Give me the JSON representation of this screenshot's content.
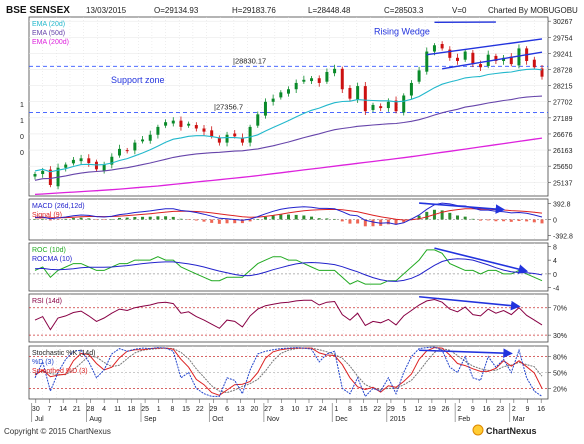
{
  "header": {
    "title": "BSE SENSEX",
    "date": "13/03/2015",
    "open": "O=29134.93",
    "high": "H=29183.76",
    "low": "L=28448.48",
    "close": "C=28503.3",
    "volume": "V=0",
    "charted_by": "Charted By MOBUGOBU"
  },
  "footer": {
    "copyright": "Copyright © 2015 ChartNexus",
    "brand": "ChartNexus"
  },
  "colors": {
    "price_up": "#0a8a2a",
    "price_down": "#cc1111",
    "ema20": "#22b8cc",
    "ema50": "#6644aa",
    "ema200": "#dd22dd",
    "macd": "#2222cc",
    "signal": "#dd2222",
    "hist_up": "#2e8b2e",
    "hist_down": "#ee6655",
    "roc": "#22aa22",
    "rocma": "#2222cc",
    "rsi": "#880044",
    "stoch_k": "#2244cc",
    "stoch_d": "#dd2222",
    "annotation": "#2233dd",
    "zone_line": "#3355ff"
  },
  "chart_data": [
    {
      "type": "candlestick",
      "title": "BSE SENSEX",
      "legend": [
        "EMA (20d)",
        "EMA (50d)",
        "EMA (200d)"
      ],
      "legend_placement": "top-left",
      "annotations": [
        "Support zone",
        "Rising Wedge",
        "|28830.17",
        "|27356.7"
      ],
      "horizontal_levels": [
        28830.17,
        27356.7
      ],
      "ylim": [
        24700,
        30400
      ],
      "y_ticks": [
        30267,
        29754,
        29241,
        28728,
        28215,
        27702,
        27189,
        26676,
        26163,
        25650,
        25137
      ],
      "left_labels": [
        "1",
        "1",
        "0",
        "0"
      ],
      "x_tick_labels": [
        "30",
        "7",
        "14",
        "21",
        "28",
        "4",
        "11",
        "18",
        "25",
        "1",
        "8",
        "15",
        "22",
        "29",
        "6",
        "13",
        "20",
        "27",
        "3",
        "10",
        "17",
        "24",
        "1",
        "8",
        "15",
        "22",
        "29",
        "5",
        "12",
        "19",
        "26",
        "2",
        "9",
        "16",
        "23",
        "2",
        "9",
        "16"
      ],
      "month_labels": [
        "Jul",
        "Aug",
        "Sep",
        "Oct",
        "Nov",
        "Dec",
        "2015",
        "Feb",
        "Mar"
      ],
      "close": [
        25400,
        25500,
        25050,
        25600,
        25700,
        25850,
        25900,
        25750,
        25550,
        25700,
        25950,
        26200,
        26150,
        26400,
        26500,
        26650,
        26900,
        27050,
        27100,
        26900,
        27000,
        26850,
        26750,
        26600,
        26400,
        26650,
        26600,
        26400,
        26900,
        27300,
        27700,
        27800,
        28000,
        28100,
        28300,
        28400,
        28450,
        28300,
        28650,
        28750,
        28100,
        27800,
        28200,
        27400,
        27600,
        27500,
        27700,
        27400,
        27900,
        28300,
        28700,
        29300,
        29500,
        29400,
        29100,
        29000,
        29300,
        28900,
        28800,
        29200,
        29000,
        29100,
        28900,
        29400,
        29000,
        28800,
        28500
      ],
      "ema_20d": [
        25500,
        25550,
        25470,
        25520,
        25570,
        25640,
        25700,
        25710,
        25690,
        25700,
        25750,
        25830,
        25890,
        25980,
        26070,
        26170,
        26290,
        26410,
        26510,
        26550,
        26600,
        26620,
        26620,
        26590,
        26550,
        26560,
        26560,
        26540,
        26580,
        26650,
        26770,
        26880,
        26990,
        27100,
        27220,
        27330,
        27430,
        27500,
        27590,
        27670,
        27710,
        27720,
        27770,
        27750,
        27740,
        27730,
        27730,
        27700,
        27720,
        27780,
        27870,
        28010,
        28150,
        28260,
        28330,
        28390,
        28460,
        28490,
        28510,
        28570,
        28600,
        28630,
        28650,
        28700,
        28730,
        28740,
        28720
      ],
      "ema_50d": [
        25200,
        25250,
        25260,
        25300,
        25340,
        25390,
        25430,
        25460,
        25480,
        25500,
        25530,
        25570,
        25600,
        25650,
        25700,
        25750,
        25810,
        25870,
        25930,
        25970,
        26010,
        26040,
        26060,
        26080,
        26090,
        26110,
        26130,
        26140,
        26170,
        26200,
        26250,
        26300,
        26360,
        26420,
        26490,
        26560,
        26620,
        26680,
        26750,
        26810,
        26850,
        26880,
        26920,
        26940,
        26960,
        26980,
        27000,
        27010,
        27040,
        27080,
        27130,
        27200,
        27280,
        27350,
        27410,
        27460,
        27530,
        27570,
        27610,
        27660,
        27700,
        27740,
        27770,
        27820,
        27850,
        27870,
        27880
      ],
      "ema_200d": [
        24750,
        24765,
        24780,
        24795,
        24810,
        24825,
        24840,
        24855,
        24870,
        24885,
        24900,
        24920,
        24940,
        24960,
        24980,
        25000,
        25020,
        25045,
        25070,
        25095,
        25120,
        25145,
        25170,
        25195,
        25220,
        25245,
        25270,
        25295,
        25320,
        25350,
        25380,
        25410,
        25440,
        25470,
        25500,
        25530,
        25560,
        25590,
        25620,
        25650,
        25680,
        25710,
        25740,
        25770,
        25800,
        25830,
        25860,
        25890,
        25920,
        25950,
        25985,
        26020,
        26055,
        26090,
        26125,
        26160,
        26195,
        26230,
        26265,
        26300,
        26335,
        26370,
        26405,
        26440,
        26475,
        26510,
        26545
      ]
    },
    {
      "type": "line",
      "title": "MACD (26d,12d)",
      "legend": [
        "MACD (26d,12d)",
        "Signal (9)"
      ],
      "ylim": [
        -500,
        500
      ],
      "y_ticks": [
        392.8,
        0,
        -392.8
      ],
      "macd": [
        50,
        60,
        20,
        40,
        60,
        90,
        110,
        100,
        70,
        60,
        80,
        120,
        140,
        170,
        190,
        210,
        240,
        260,
        260,
        220,
        200,
        170,
        130,
        80,
        30,
        20,
        0,
        -20,
        10,
        70,
        140,
        200,
        250,
        280,
        300,
        310,
        300,
        270,
        270,
        260,
        190,
        110,
        90,
        -20,
        -60,
        -90,
        -80,
        -120,
        -80,
        10,
        110,
        250,
        360,
        400,
        380,
        340,
        330,
        280,
        230,
        230,
        200,
        190,
        160,
        170,
        150,
        110,
        60
      ],
      "signal": [
        40,
        45,
        42,
        42,
        46,
        55,
        66,
        73,
        72,
        70,
        72,
        82,
        94,
        109,
        125,
        142,
        162,
        181,
        197,
        202,
        201,
        195,
        182,
        162,
        136,
        113,
        90,
        68,
        56,
        59,
        75,
        100,
        130,
        160,
        188,
        212,
        230,
        238,
        244,
        247,
        236,
        211,
        187,
        146,
        105,
        66,
        37,
        6,
        -11,
        -7,
        17,
        64,
        123,
        178,
        218,
        242,
        260,
        264,
        257,
        252,
        242,
        232,
        217,
        207,
        196,
        179,
        155
      ]
    },
    {
      "type": "line",
      "title": "ROC (10d)",
      "legend": [
        "ROC (10d)",
        "ROCMA (10)"
      ],
      "ylim": [
        -5,
        9
      ],
      "y_ticks": [
        8,
        4,
        0,
        -4
      ],
      "roc": [
        1,
        2,
        -1,
        1,
        2,
        3,
        3,
        2,
        1,
        1,
        2,
        3,
        3,
        4,
        4,
        4,
        5,
        4,
        4,
        2,
        1,
        0,
        -1,
        -2,
        -2,
        -1,
        -1,
        -1,
        1,
        3,
        4,
        5,
        5,
        4,
        4,
        3,
        2,
        1,
        1,
        1,
        -1,
        -3,
        -2,
        -3,
        -3,
        -3,
        -2,
        -2,
        0,
        2,
        4,
        7,
        7,
        6,
        3,
        2,
        1,
        1,
        0,
        1,
        1,
        0,
        0,
        1,
        0,
        -1,
        -2
      ],
      "rocma": [
        1.5,
        1.6,
        1.3,
        1.2,
        1.3,
        1.5,
        1.8,
        1.9,
        1.9,
        1.9,
        2.0,
        2.2,
        2.4,
        2.7,
        3.0,
        3.2,
        3.4,
        3.5,
        3.5,
        3.2,
        2.9,
        2.5,
        2.0,
        1.4,
        0.8,
        0.3,
        -0.2,
        -0.5,
        -0.5,
        -0.1,
        0.5,
        1.2,
        1.8,
        2.4,
        2.9,
        3.2,
        3.3,
        3.2,
        3.0,
        2.7,
        2.1,
        1.3,
        0.6,
        -0.3,
        -1.1,
        -1.7,
        -2.1,
        -2.2,
        -1.9,
        -1.3,
        -0.3,
        1.1,
        2.5,
        3.6,
        4.2,
        4.4,
        4.3,
        4.0,
        3.3,
        2.6,
        1.8,
        1.1,
        0.6,
        0.4,
        0.3,
        0.1,
        -0.3
      ]
    },
    {
      "type": "line",
      "title": "RSI (14d)",
      "legend": [
        "RSI (14d)"
      ],
      "ylim": [
        20,
        90
      ],
      "y_ticks": [
        70,
        30
      ],
      "rsi": [
        52,
        57,
        38,
        55,
        58,
        63,
        65,
        58,
        50,
        55,
        62,
        68,
        66,
        70,
        72,
        74,
        77,
        78,
        76,
        62,
        64,
        57,
        52,
        46,
        40,
        52,
        50,
        42,
        58,
        68,
        73,
        75,
        77,
        78,
        80,
        81,
        81,
        74,
        78,
        79,
        60,
        52,
        62,
        44,
        50,
        48,
        53,
        45,
        58,
        66,
        74,
        80,
        82,
        78,
        68,
        64,
        71,
        60,
        58,
        68,
        62,
        66,
        60,
        70,
        59,
        52,
        45
      ]
    },
    {
      "type": "line",
      "title": "Stochastic %K (14d)",
      "legend": [
        "Stochastic %K (14d)",
        "%D (3)",
        "Smoothed %D (3)"
      ],
      "ylim": [
        0,
        100
      ],
      "y_ticks": [
        80,
        50,
        20
      ],
      "stoch_k": [
        40,
        70,
        15,
        50,
        75,
        90,
        92,
        70,
        40,
        55,
        85,
        95,
        90,
        94,
        96,
        95,
        97,
        96,
        90,
        40,
        50,
        20,
        10,
        5,
        5,
        40,
        35,
        10,
        55,
        85,
        90,
        93,
        95,
        96,
        97,
        96,
        94,
        70,
        85,
        90,
        20,
        10,
        40,
        5,
        20,
        15,
        40,
        10,
        50,
        80,
        95,
        97,
        98,
        92,
        60,
        50,
        80,
        40,
        35,
        80,
        60,
        75,
        50,
        92,
        40,
        15,
        5
      ],
      "stoch_d": [
        45,
        55,
        42,
        45,
        47,
        72,
        86,
        84,
        67,
        55,
        60,
        78,
        90,
        93,
        93,
        95,
        96,
        96,
        94,
        75,
        60,
        37,
        27,
        12,
        7,
        17,
        27,
        28,
        33,
        50,
        77,
        89,
        93,
        95,
        96,
        96,
        96,
        87,
        83,
        82,
        65,
        40,
        23,
        18,
        22,
        13,
        25,
        22,
        33,
        47,
        75,
        91,
        97,
        96,
        83,
        67,
        63,
        57,
        52,
        52,
        58,
        72,
        62,
        72,
        61,
        49,
        20
      ],
      "smoothed_d": [
        48,
        52,
        48,
        46,
        46,
        55,
        68,
        81,
        79,
        69,
        61,
        64,
        76,
        87,
        92,
        94,
        95,
        96,
        95,
        88,
        76,
        57,
        41,
        25,
        15,
        12,
        17,
        24,
        29,
        37,
        53,
        72,
        86,
        92,
        95,
        96,
        96,
        93,
        89,
        84,
        77,
        62,
        43,
        27,
        21,
        18,
        20,
        20,
        27,
        35,
        52,
        71,
        88,
        95,
        92,
        82,
        71,
        62,
        57,
        54,
        54,
        61,
        64,
        69,
        65,
        61,
        43
      ]
    }
  ]
}
